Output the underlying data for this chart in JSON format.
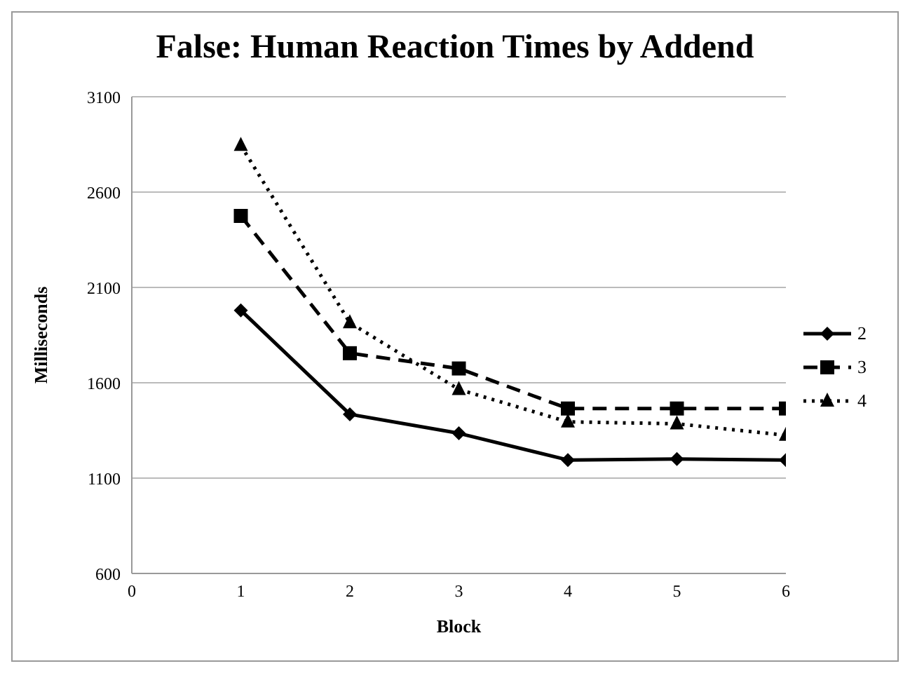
{
  "chart_data": {
    "type": "line",
    "title": "False: Human Reaction Times by Addend",
    "xlabel": "Block",
    "ylabel": "Milliseconds",
    "x": [
      1,
      2,
      3,
      4,
      5,
      6
    ],
    "xlim": [
      0,
      6
    ],
    "xticks": [
      0,
      1,
      2,
      3,
      4,
      5,
      6
    ],
    "ylim": [
      600,
      3100
    ],
    "yticks": [
      600,
      1100,
      1600,
      2100,
      2600,
      3100
    ],
    "grid": "y",
    "legend": "right",
    "series": [
      {
        "name": "2",
        "color": "#000000",
        "marker": "diamond",
        "line_style": "solid",
        "values": [
          1980,
          1435,
          1335,
          1195,
          1200,
          1195
        ]
      },
      {
        "name": "3",
        "color": "#000000",
        "marker": "square",
        "line_style": "dashed",
        "values": [
          2475,
          1755,
          1675,
          1465,
          1465,
          1465
        ]
      },
      {
        "name": "4",
        "color": "#000000",
        "marker": "triangle",
        "line_style": "dotted",
        "values": [
          2845,
          1915,
          1565,
          1395,
          1385,
          1325
        ]
      }
    ]
  }
}
